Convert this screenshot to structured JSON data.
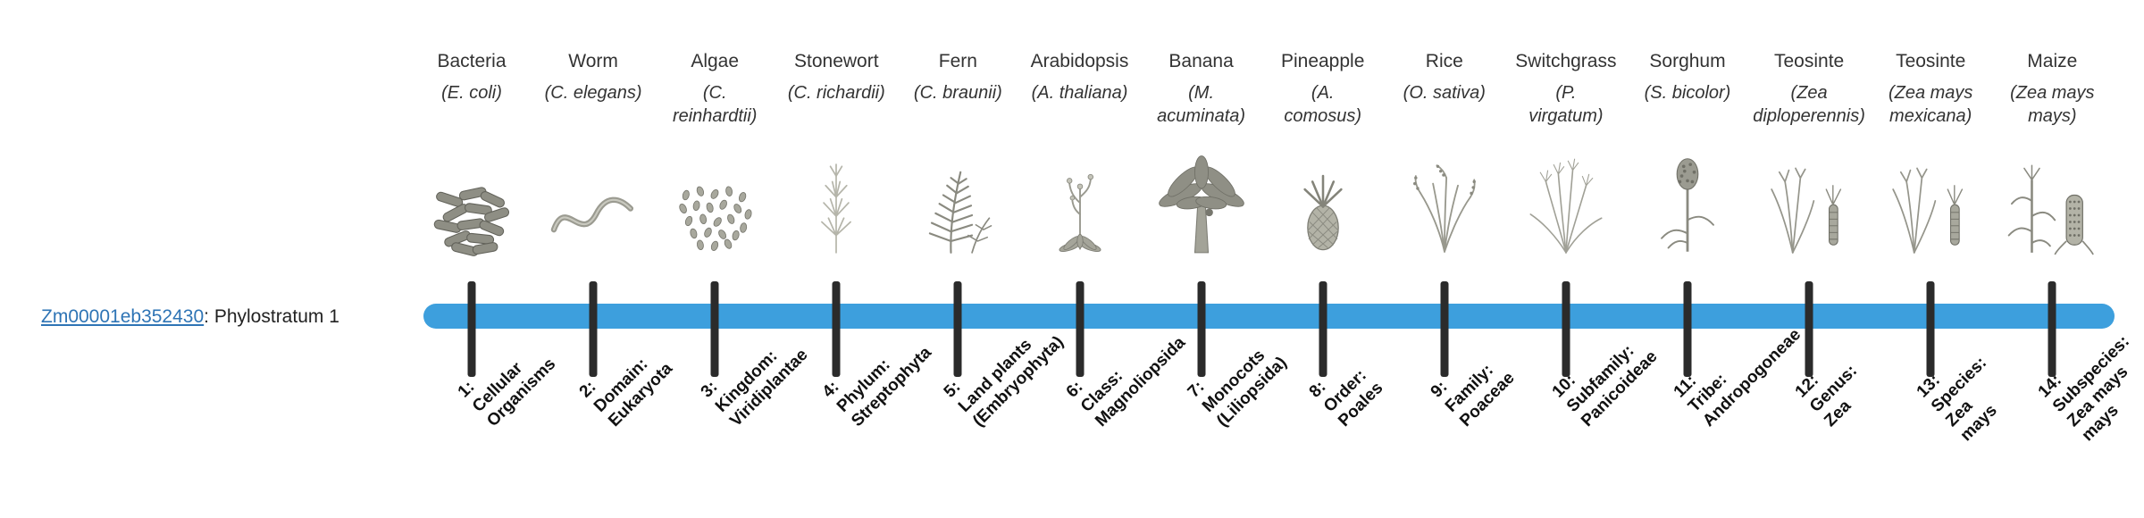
{
  "gene": {
    "id": "Zm00001eb352430",
    "suffix": ": Phylostratum 1"
  },
  "colors": {
    "bar": "#3d9fdd",
    "tick": "#2b2b2b",
    "link": "#2e74b5"
  },
  "strata": [
    {
      "organism": "Bacteria",
      "scientific": "(E. coli)",
      "icon": "bacteria-illustration",
      "label": "1:\nCellular\nOrganisms"
    },
    {
      "organism": "Worm",
      "scientific": "(C. elegans)",
      "icon": "worm-illustration",
      "label": "2:\nDomain:\nEukaryota"
    },
    {
      "organism": "Algae",
      "scientific": "(C.\nreinhardtii)",
      "icon": "algae-illustration",
      "label": "3:\nKingdom:\nViridiplantae"
    },
    {
      "organism": "Stonewort",
      "scientific": "(C. richardii)",
      "icon": "stonewort-illustration",
      "label": "4:\nPhylum:\nStreptophyta"
    },
    {
      "organism": "Fern",
      "scientific": "(C. braunii)",
      "icon": "fern-illustration",
      "label": "5:\nLand plants\n(Embryophyta)"
    },
    {
      "organism": "Arabidopsis",
      "scientific": "(A. thaliana)",
      "icon": "arabidopsis-illustration",
      "label": "6:\nClass:\nMagnoliopsida"
    },
    {
      "organism": "Banana",
      "scientific": "(M.\nacuminata)",
      "icon": "banana-illustration",
      "label": "7:\nMonocots\n(Liliopsida)"
    },
    {
      "organism": "Pineapple",
      "scientific": "(A.\ncomosus)",
      "icon": "pineapple-illustration",
      "label": "8:\nOrder:\nPoales"
    },
    {
      "organism": "Rice",
      "scientific": "(O. sativa)",
      "icon": "rice-illustration",
      "label": "9:\nFamily:\nPoaceae"
    },
    {
      "organism": "Switchgrass",
      "scientific": "(P.\nvirgatum)",
      "icon": "switchgrass-illustration",
      "label": "10:\nSubfamily:\nPanicoideae"
    },
    {
      "organism": "Sorghum",
      "scientific": "(S. bicolor)",
      "icon": "sorghum-illustration",
      "label": "11:\nTribe:\nAndropogoneae"
    },
    {
      "organism": "Teosinte",
      "scientific": "(Zea\ndiploperennis)",
      "icon": "teosinte-illustration",
      "label": "12:\nGenus:\nZea"
    },
    {
      "organism": "Teosinte",
      "scientific": "(Zea mays\nmexicana)",
      "icon": "teosinte-illustration",
      "label": "13:\nSpecies:\nZea\nmays"
    },
    {
      "organism": "Maize",
      "scientific": "(Zea mays\nmays)",
      "icon": "maize-illustration",
      "label": "14:\nSubspecies:\nZea mays\nmays"
    }
  ]
}
